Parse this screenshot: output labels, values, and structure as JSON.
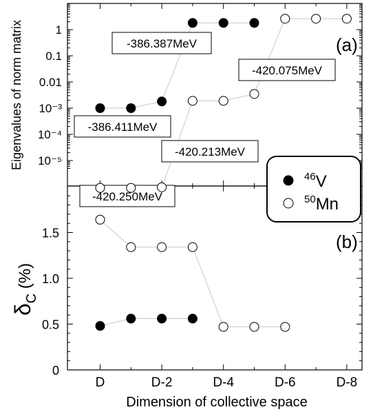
{
  "chart_data": [
    {
      "panel": "a",
      "type": "line",
      "panel_label": "(a)",
      "ylabel": "Eigenvalues of norm matrix",
      "yscale": "log",
      "ylim": [
        4e-07,
        6
      ],
      "x_positions": [
        "D",
        "D-1",
        "D-2",
        "D-3",
        "D-4",
        "D-5",
        "D-6",
        "D-7",
        "D-8"
      ],
      "ytick_labels": [
        "1",
        "0.1",
        "0.01",
        "10⁻³",
        "10⁻⁴",
        "10⁻⁵"
      ],
      "ytick_values": [
        1,
        0.1,
        0.01,
        0.001,
        0.0001,
        1e-05
      ],
      "series": [
        {
          "name": "46V",
          "marker": "filled-circle",
          "x": [
            "D",
            "D-1",
            "D-2",
            "D-3",
            "D-4",
            "D-5"
          ],
          "values": [
            0.001,
            0.001,
            0.0018,
            1.8,
            1.8,
            1.8
          ]
        },
        {
          "name": "50Mn",
          "marker": "open-circle",
          "x": [
            "D",
            "D-1",
            "D-2",
            "D-3",
            "D-4",
            "D-5",
            "D-6",
            "D-7",
            "D-8"
          ],
          "values": [
            9e-07,
            9e-07,
            9.5e-07,
            0.0019,
            0.0019,
            0.0035,
            2.6,
            2.6,
            2.6
          ]
        }
      ],
      "annotations": [
        "-386.387MeV",
        "-386.411MeV",
        "-420.075MeV",
        "-420.213MeV",
        "-420.250MeV"
      ]
    },
    {
      "panel": "b",
      "type": "line",
      "panel_label": "(b)",
      "ylabel_main": "δ",
      "ylabel_sub": "C",
      "ylabel_unit": " (%)",
      "ylim": [
        0,
        1.95
      ],
      "ytick_labels": [
        "0",
        "0.5",
        "1.0",
        "1.5"
      ],
      "ytick_values": [
        0,
        0.5,
        1.0,
        1.5
      ],
      "xlabel": "Dimension of collective space",
      "xtick_labels": [
        "D",
        "D-2",
        "D-4",
        "D-6",
        "D-8"
      ],
      "series": [
        {
          "name": "46V",
          "marker": "filled-circle",
          "x": [
            "D",
            "D-1",
            "D-2",
            "D-3"
          ],
          "values": [
            0.48,
            0.56,
            0.56,
            0.56
          ]
        },
        {
          "name": "50Mn",
          "marker": "open-circle",
          "x": [
            "D",
            "D-1",
            "D-2",
            "D-3",
            "D-4",
            "D-5",
            "D-6"
          ],
          "values": [
            1.64,
            1.34,
            1.34,
            1.34,
            0.47,
            0.47,
            0.47
          ]
        }
      ]
    }
  ],
  "legend": {
    "placement": "right, between panels",
    "items": [
      {
        "sup": "46",
        "label": "V",
        "marker": "filled-circle"
      },
      {
        "sup": "50",
        "label": "Mn",
        "marker": "open-circle"
      }
    ]
  }
}
